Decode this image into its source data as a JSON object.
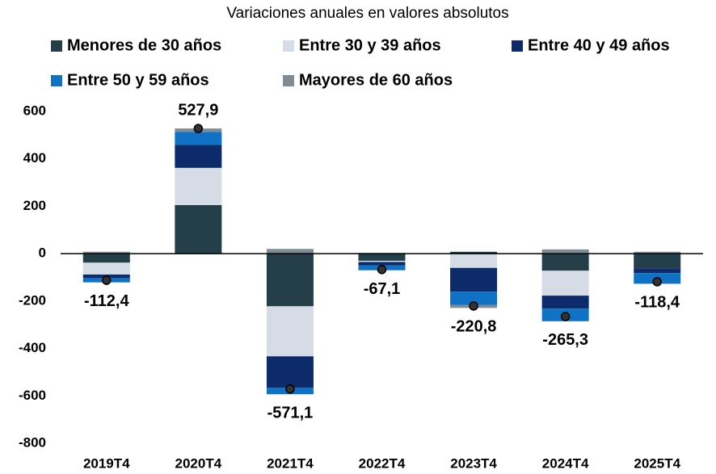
{
  "chart_data": {
    "type": "stacked_bar",
    "title": "Variaciones anuales en valores absolutos",
    "categories": [
      "2019T4",
      "2020T4",
      "2021T4",
      "2022T4",
      "2023T4",
      "2024T4",
      "2025T4"
    ],
    "series": [
      {
        "name": "Menores de 30 años",
        "color": "#243f4a",
        "values": [
          -38,
          205,
          -222,
          -30,
          8,
          -72,
          -62
        ]
      },
      {
        "name": "Entre 30 y 39 años",
        "color": "#d6dce5",
        "values": [
          -50,
          157,
          -211,
          -5,
          -60,
          -105,
          0
        ]
      },
      {
        "name": "Entre 40 y 49 años",
        "color": "#0d2a6b",
        "values": [
          -15,
          97,
          -133,
          -15,
          -100,
          -55,
          -20
        ]
      },
      {
        "name": "Entre 50 y 59 años",
        "color": "#1072c4",
        "values": [
          -18,
          55,
          -27,
          -20,
          -57,
          -53,
          -45
        ]
      },
      {
        "name": "Mayores de 60 años",
        "color": "#7f8c95",
        "values": [
          8,
          14,
          20,
          3,
          -12,
          18,
          8
        ]
      }
    ],
    "totals": [
      -112.4,
      527.9,
      -571.1,
      -67.1,
      -220.8,
      -265.3,
      -118.4
    ],
    "value_labels": [
      "-112,4",
      "527,9",
      "-571,1",
      "-67,1",
      "-220,8",
      "-265,3",
      "-118,4"
    ],
    "ylim": [
      -800,
      600
    ],
    "yticks": [
      -800,
      -600,
      -400,
      -200,
      0,
      200,
      400,
      600
    ]
  }
}
